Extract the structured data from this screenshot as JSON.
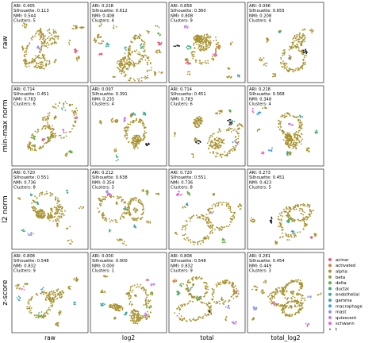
{
  "chart_data": {
    "type": "scatter",
    "row_labels": [
      "raw",
      "min-max norm",
      "l2 norm",
      "z-score"
    ],
    "column_labels": [
      "raw",
      "log2",
      "total",
      "total_log2"
    ],
    "panels": [
      {
        "row": 0,
        "col": 0,
        "lines": [
          "ARI: 0.405",
          "Silhouette: 0.113",
          "NMI: 0.544",
          "Clusters: 5"
        ]
      },
      {
        "row": 0,
        "col": 1,
        "lines": [
          "ARI: 0.228",
          "Silhouette: 0.612",
          "NMI: 0.408",
          "Clusters: 4"
        ]
      },
      {
        "row": 0,
        "col": 2,
        "lines": [
          "ARI: 0.858",
          "Silhouette: 0.360",
          "NMI: 0.808",
          "Clusters: 9"
        ]
      },
      {
        "row": 0,
        "col": 3,
        "lines": [
          "ARI: 0.096",
          "Silhouette: 0.655",
          "NMI: 0.208",
          "Clusters: 4"
        ]
      },
      {
        "row": 1,
        "col": 0,
        "lines": [
          "ARI: 0.714",
          "Silhouette: 0.451",
          "NMI: 0.783",
          "Clusters: 6"
        ]
      },
      {
        "row": 1,
        "col": 1,
        "lines": [
          "ARI: 0.097",
          "Silhouette: 0.391",
          "NMI: 0.235",
          "Clusters: 4"
        ]
      },
      {
        "row": 1,
        "col": 2,
        "lines": [
          "ARI: 0.714",
          "Silhouette: 0.451",
          "NMI: 0.783",
          "Clusters: 6"
        ]
      },
      {
        "row": 1,
        "col": 3,
        "lines": [
          "ARI: 0.218",
          "Silhouette: 0.568",
          "NMI: 0.348",
          "Clusters: 4"
        ]
      },
      {
        "row": 2,
        "col": 0,
        "lines": [
          "ARI: 0.720",
          "Silhouette: 0.551",
          "NMI: 0.736",
          "Clusters: 8"
        ]
      },
      {
        "row": 2,
        "col": 1,
        "lines": [
          "ARI: 0.212",
          "Silhouette: 0.638",
          "NMI: 0.354",
          "Clusters: 3"
        ]
      },
      {
        "row": 2,
        "col": 2,
        "lines": [
          "ARI: 0.720",
          "Silhouette: 0.551",
          "NMI: 0.736",
          "Clusters: 8"
        ]
      },
      {
        "row": 2,
        "col": 3,
        "lines": [
          "ARI: 0.273",
          "Silhouette: 0.451",
          "NMI: 0.423",
          "Clusters: 5"
        ]
      },
      {
        "row": 3,
        "col": 0,
        "lines": [
          "ARI: 0.808",
          "Silhouette: 0.548",
          "NMI: 0.832",
          "Clusters: 9"
        ]
      },
      {
        "row": 3,
        "col": 1,
        "lines": [
          "ARI: 0.000",
          "Silhouette: 0.000",
          "NMI: 0.000",
          "Clusters: 1"
        ]
      },
      {
        "row": 3,
        "col": 2,
        "lines": [
          "ARI: 0.808",
          "Silhouette: 0.548",
          "NMI: 0.832",
          "Clusters: 9"
        ]
      },
      {
        "row": 3,
        "col": 3,
        "lines": [
          "ARI: 0.281",
          "Silhouette: 0.454",
          "NMI: 0.449",
          "Clusters: 3"
        ]
      }
    ],
    "legend": [
      {
        "label": "acinar",
        "color": "#e4607a"
      },
      {
        "label": "activated",
        "color": "#d5803a"
      },
      {
        "label": "alpha",
        "color": "#a89232"
      },
      {
        "label": "beta",
        "color": "#8ca334"
      },
      {
        "label": "delta",
        "color": "#5cac3b"
      },
      {
        "label": "ductal",
        "color": "#3aad72"
      },
      {
        "label": "endothelial",
        "color": "#37a89a"
      },
      {
        "label": "gamma",
        "color": "#3aa6b6"
      },
      {
        "label": "macrophage",
        "color": "#3b9fd5"
      },
      {
        "label": "mast",
        "color": "#8b93ea"
      },
      {
        "label": "quiescent",
        "color": "#c57ce6"
      },
      {
        "label": "schwann",
        "color": "#e667c8"
      },
      {
        "label": "t",
        "color": "#222222"
      }
    ],
    "grid": false
  }
}
